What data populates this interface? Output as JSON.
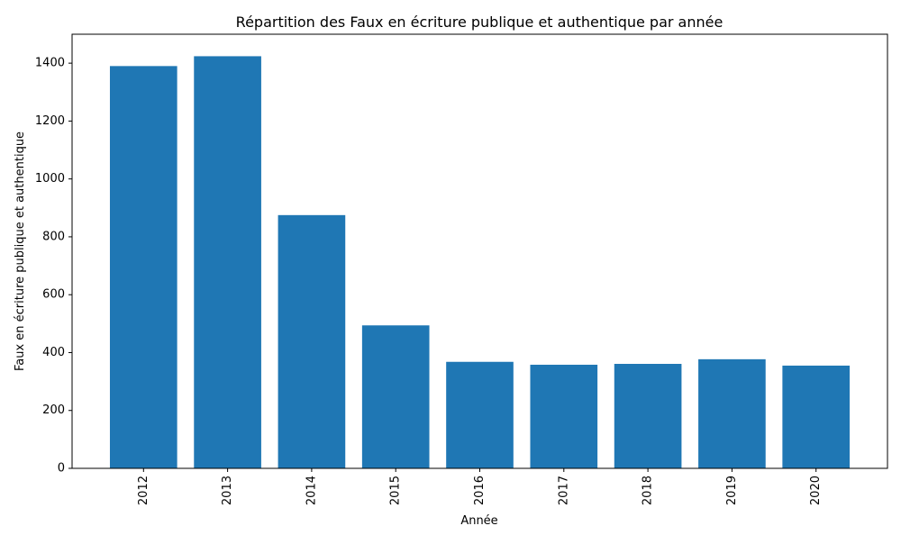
{
  "chart_data": {
    "type": "bar",
    "title": "Répartition des Faux en écriture publique et authentique par année",
    "xlabel": "Année",
    "ylabel": "Faux en écriture publique et authentique",
    "categories": [
      "2012",
      "2013",
      "2014",
      "2015",
      "2016",
      "2017",
      "2018",
      "2019",
      "2020"
    ],
    "values": [
      1390,
      1424,
      875,
      494,
      368,
      358,
      361,
      377,
      355
    ],
    "ylim": [
      0,
      1500
    ],
    "yticks": [
      0,
      200,
      400,
      600,
      800,
      1000,
      1200,
      1400
    ],
    "bar_color": "#1f77b4",
    "grid": false,
    "legend": "none"
  }
}
